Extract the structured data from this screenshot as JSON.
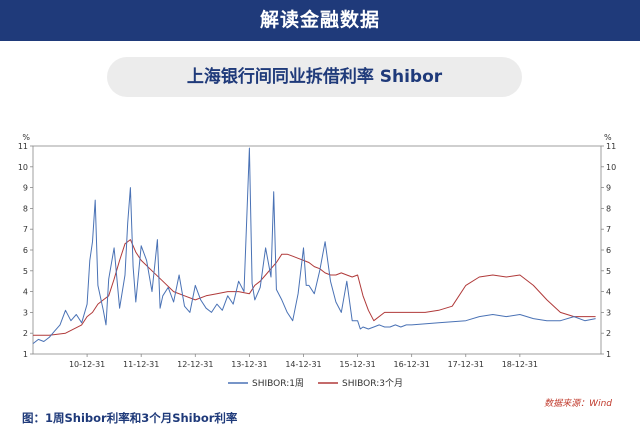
{
  "header": {
    "title": "解读金融数据"
  },
  "subtitle": "上海银行间同业拆借利率 Shibor",
  "caption": "图：1周Shibor利率和3个月Shibor利率",
  "source": "数据来源：Wind",
  "colors": {
    "banner": "#1f3a7a",
    "series_1w": "#4a72b5",
    "series_3m": "#b03a3a"
  },
  "chart_data": {
    "type": "line",
    "title": "",
    "xlabel": "",
    "ylabel": "%",
    "ylim": [
      1,
      11
    ],
    "xlim": [
      2009.0,
      2019.5
    ],
    "x_tick_labels": [
      "10-12-31",
      "11-12-31",
      "12-12-31",
      "13-12-31",
      "14-12-31",
      "15-12-31",
      "16-12-31",
      "17-12-31",
      "18-12-31"
    ],
    "x_ticks": [
      2010.0,
      2011.0,
      2012.0,
      2013.0,
      2014.0,
      2015.0,
      2016.0,
      2017.0,
      2018.0
    ],
    "y_ticks": [
      1,
      2,
      3,
      4,
      5,
      6,
      7,
      8,
      9,
      10,
      11
    ],
    "grid": false,
    "legend": "bottom-center",
    "series": [
      {
        "name": "SHIBOR:1周",
        "color": "#4a72b5",
        "x": [
          2009.0,
          2009.1,
          2009.2,
          2009.3,
          2009.4,
          2009.5,
          2009.6,
          2009.7,
          2009.8,
          2009.9,
          2010.0,
          2010.05,
          2010.1,
          2010.15,
          2010.2,
          2010.3,
          2010.35,
          2010.4,
          2010.5,
          2010.6,
          2010.7,
          2010.75,
          2010.8,
          2010.85,
          2010.9,
          2011.0,
          2011.1,
          2011.2,
          2011.3,
          2011.35,
          2011.4,
          2011.5,
          2011.6,
          2011.7,
          2011.8,
          2011.9,
          2012.0,
          2012.1,
          2012.2,
          2012.3,
          2012.4,
          2012.5,
          2012.6,
          2012.7,
          2012.8,
          2012.9,
          2013.0,
          2013.05,
          2013.1,
          2013.2,
          2013.3,
          2013.4,
          2013.45,
          2013.5,
          2013.6,
          2013.7,
          2013.8,
          2013.9,
          2014.0,
          2014.05,
          2014.1,
          2014.2,
          2014.3,
          2014.4,
          2014.5,
          2014.6,
          2014.7,
          2014.8,
          2014.9,
          2015.0,
          2015.05,
          2015.1,
          2015.2,
          2015.3,
          2015.4,
          2015.5,
          2015.6,
          2015.7,
          2015.8,
          2015.9,
          2016.0,
          2016.5,
          2017.0,
          2017.25,
          2017.5,
          2017.75,
          2018.0,
          2018.25,
          2018.5,
          2018.75,
          2019.0,
          2019.2,
          2019.4
        ],
        "values": [
          1.5,
          1.7,
          1.6,
          1.8,
          2.1,
          2.4,
          3.1,
          2.6,
          2.9,
          2.5,
          3.4,
          5.5,
          6.4,
          8.4,
          4.3,
          3.1,
          2.4,
          4.6,
          6.1,
          3.2,
          4.8,
          7.3,
          9.0,
          5.2,
          3.5,
          6.2,
          5.5,
          4.0,
          6.5,
          3.2,
          3.8,
          4.2,
          3.5,
          4.8,
          3.3,
          3.0,
          4.3,
          3.6,
          3.2,
          3.0,
          3.4,
          3.1,
          3.8,
          3.4,
          4.5,
          4.0,
          10.9,
          4.4,
          3.6,
          4.2,
          6.1,
          4.7,
          8.8,
          4.1,
          3.6,
          3.0,
          2.6,
          3.9,
          6.1,
          4.3,
          4.3,
          3.9,
          5.0,
          6.4,
          4.5,
          3.5,
          3.0,
          4.5,
          2.6,
          2.6,
          2.2,
          2.3,
          2.2,
          2.3,
          2.4,
          2.3,
          2.3,
          2.4,
          2.3,
          2.4,
          2.4,
          2.5,
          2.6,
          2.8,
          2.9,
          2.8,
          2.9,
          2.7,
          2.6,
          2.6,
          2.8,
          2.6,
          2.7
        ]
      },
      {
        "name": "SHIBOR:3个月",
        "color": "#b03a3a",
        "x": [
          2009.0,
          2009.3,
          2009.6,
          2009.9,
          2010.0,
          2010.1,
          2010.2,
          2010.3,
          2010.4,
          2010.5,
          2010.6,
          2010.7,
          2010.8,
          2010.9,
          2011.0,
          2011.2,
          2011.4,
          2011.6,
          2011.8,
          2012.0,
          2012.2,
          2012.4,
          2012.6,
          2012.8,
          2013.0,
          2013.1,
          2013.2,
          2013.3,
          2013.4,
          2013.5,
          2013.6,
          2013.7,
          2013.8,
          2013.9,
          2014.0,
          2014.1,
          2014.2,
          2014.3,
          2014.4,
          2014.5,
          2014.6,
          2014.7,
          2014.8,
          2014.9,
          2015.0,
          2015.1,
          2015.2,
          2015.3,
          2015.5,
          2015.75,
          2016.0,
          2016.25,
          2016.5,
          2016.75,
          2017.0,
          2017.25,
          2017.5,
          2017.75,
          2018.0,
          2018.25,
          2018.5,
          2018.75,
          2019.0,
          2019.2,
          2019.4
        ],
        "values": [
          1.9,
          1.9,
          2.0,
          2.4,
          2.8,
          3.0,
          3.4,
          3.6,
          3.8,
          4.6,
          5.5,
          6.3,
          6.5,
          5.9,
          5.5,
          5.0,
          4.5,
          4.0,
          3.8,
          3.6,
          3.8,
          3.9,
          4.0,
          4.0,
          3.9,
          4.3,
          4.5,
          4.8,
          5.1,
          5.4,
          5.8,
          5.8,
          5.7,
          5.6,
          5.5,
          5.4,
          5.2,
          5.1,
          4.9,
          4.8,
          4.8,
          4.9,
          4.8,
          4.7,
          4.8,
          3.8,
          3.1,
          2.6,
          3.0,
          3.0,
          3.0,
          3.0,
          3.1,
          3.3,
          4.3,
          4.7,
          4.8,
          4.7,
          4.8,
          4.3,
          3.6,
          3.0,
          2.8,
          2.8,
          2.8
        ]
      }
    ]
  }
}
